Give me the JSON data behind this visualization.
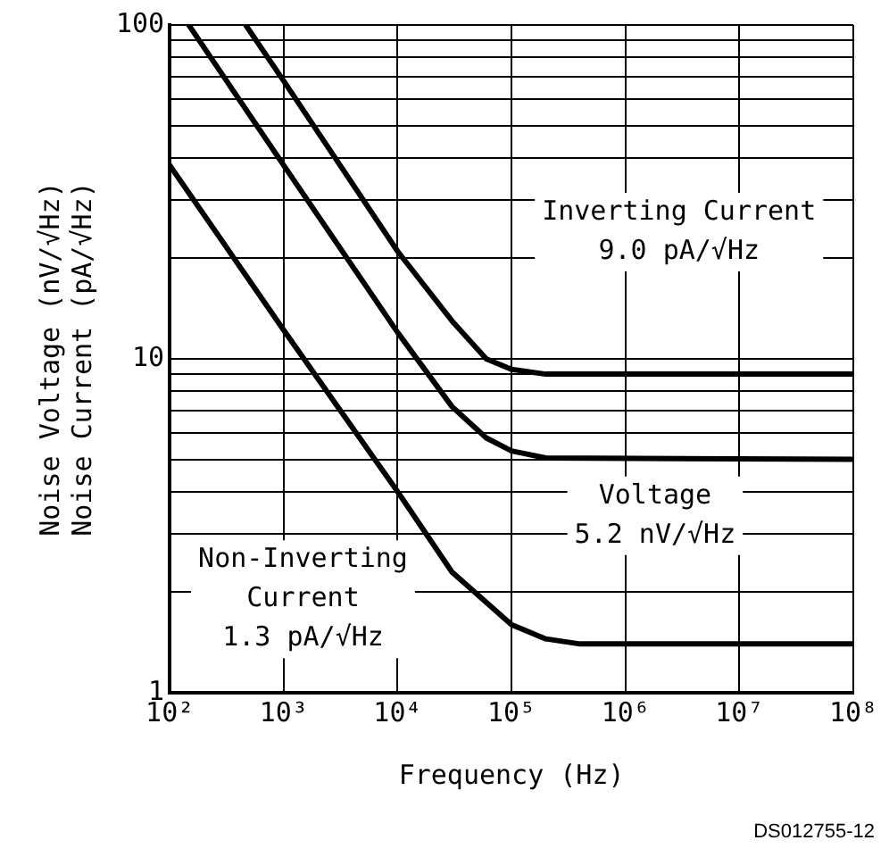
{
  "chart_data": {
    "type": "line",
    "xlabel": "Frequency (Hz)",
    "ylabel": "Noise Voltage (nV/√Hz)\nNoise Current (pA/√Hz)",
    "log": "xy",
    "grid": true,
    "legend": false,
    "marker": "none",
    "line_style": "solid",
    "xlim": [
      100,
      100000000
    ],
    "ylim": [
      1,
      100
    ],
    "xticks": [
      {
        "value": 100,
        "label": "10²"
      },
      {
        "value": 1000,
        "label": "10³"
      },
      {
        "value": 10000,
        "label": "10⁴"
      },
      {
        "value": 100000,
        "label": "10⁵"
      },
      {
        "value": 1000000,
        "label": "10⁶"
      },
      {
        "value": 10000000,
        "label": "10⁷"
      },
      {
        "value": 100000000,
        "label": "10⁸"
      }
    ],
    "yticks": [
      1,
      {
        "value": 2,
        "label": null
      },
      {
        "value": 3,
        "label": null
      },
      {
        "value": 4,
        "label": null
      },
      {
        "value": 5,
        "label": null
      },
      {
        "value": 6,
        "label": null
      },
      {
        "value": 7,
        "label": null
      },
      {
        "value": 8,
        "label": null
      },
      {
        "value": 9,
        "label": null
      },
      10,
      {
        "value": 20,
        "label": null
      },
      {
        "value": 30,
        "label": null
      },
      {
        "value": 40,
        "label": null
      },
      {
        "value": 50,
        "label": null
      },
      {
        "value": 60,
        "label": null
      },
      {
        "value": 70,
        "label": null
      },
      {
        "value": 80,
        "label": null
      },
      {
        "value": 90,
        "label": null
      },
      100
    ],
    "series": [
      {
        "color": "#000000",
        "x": [
          464,
          1000,
          10000,
          30000,
          60000,
          100000,
          200000,
          100000000
        ],
        "values": [
          100,
          68,
          21,
          13,
          10,
          9.3,
          9,
          9
        ]
      },
      {
        "color": "#000000",
        "x": [
          147,
          1000,
          10000,
          30000,
          60000,
          100000,
          200000,
          100000000
        ],
        "values": [
          100,
          38,
          12,
          7.2,
          5.8,
          5.3,
          5.05,
          5
        ]
      },
      {
        "color": "#000000",
        "x": [
          100,
          1000,
          10000,
          30000,
          100000,
          200000,
          400000,
          100000000
        ],
        "values": [
          38,
          12.2,
          4,
          2.3,
          1.6,
          1.45,
          1.4,
          1.4
        ]
      }
    ],
    "annotations": [
      "Inverting Current\n9.0 pA/√Hz",
      "Voltage\n5.2 nV/√Hz",
      "Non-Inverting\nCurrent\n1.3 pA/√Hz",
      "DS012755-12"
    ]
  }
}
